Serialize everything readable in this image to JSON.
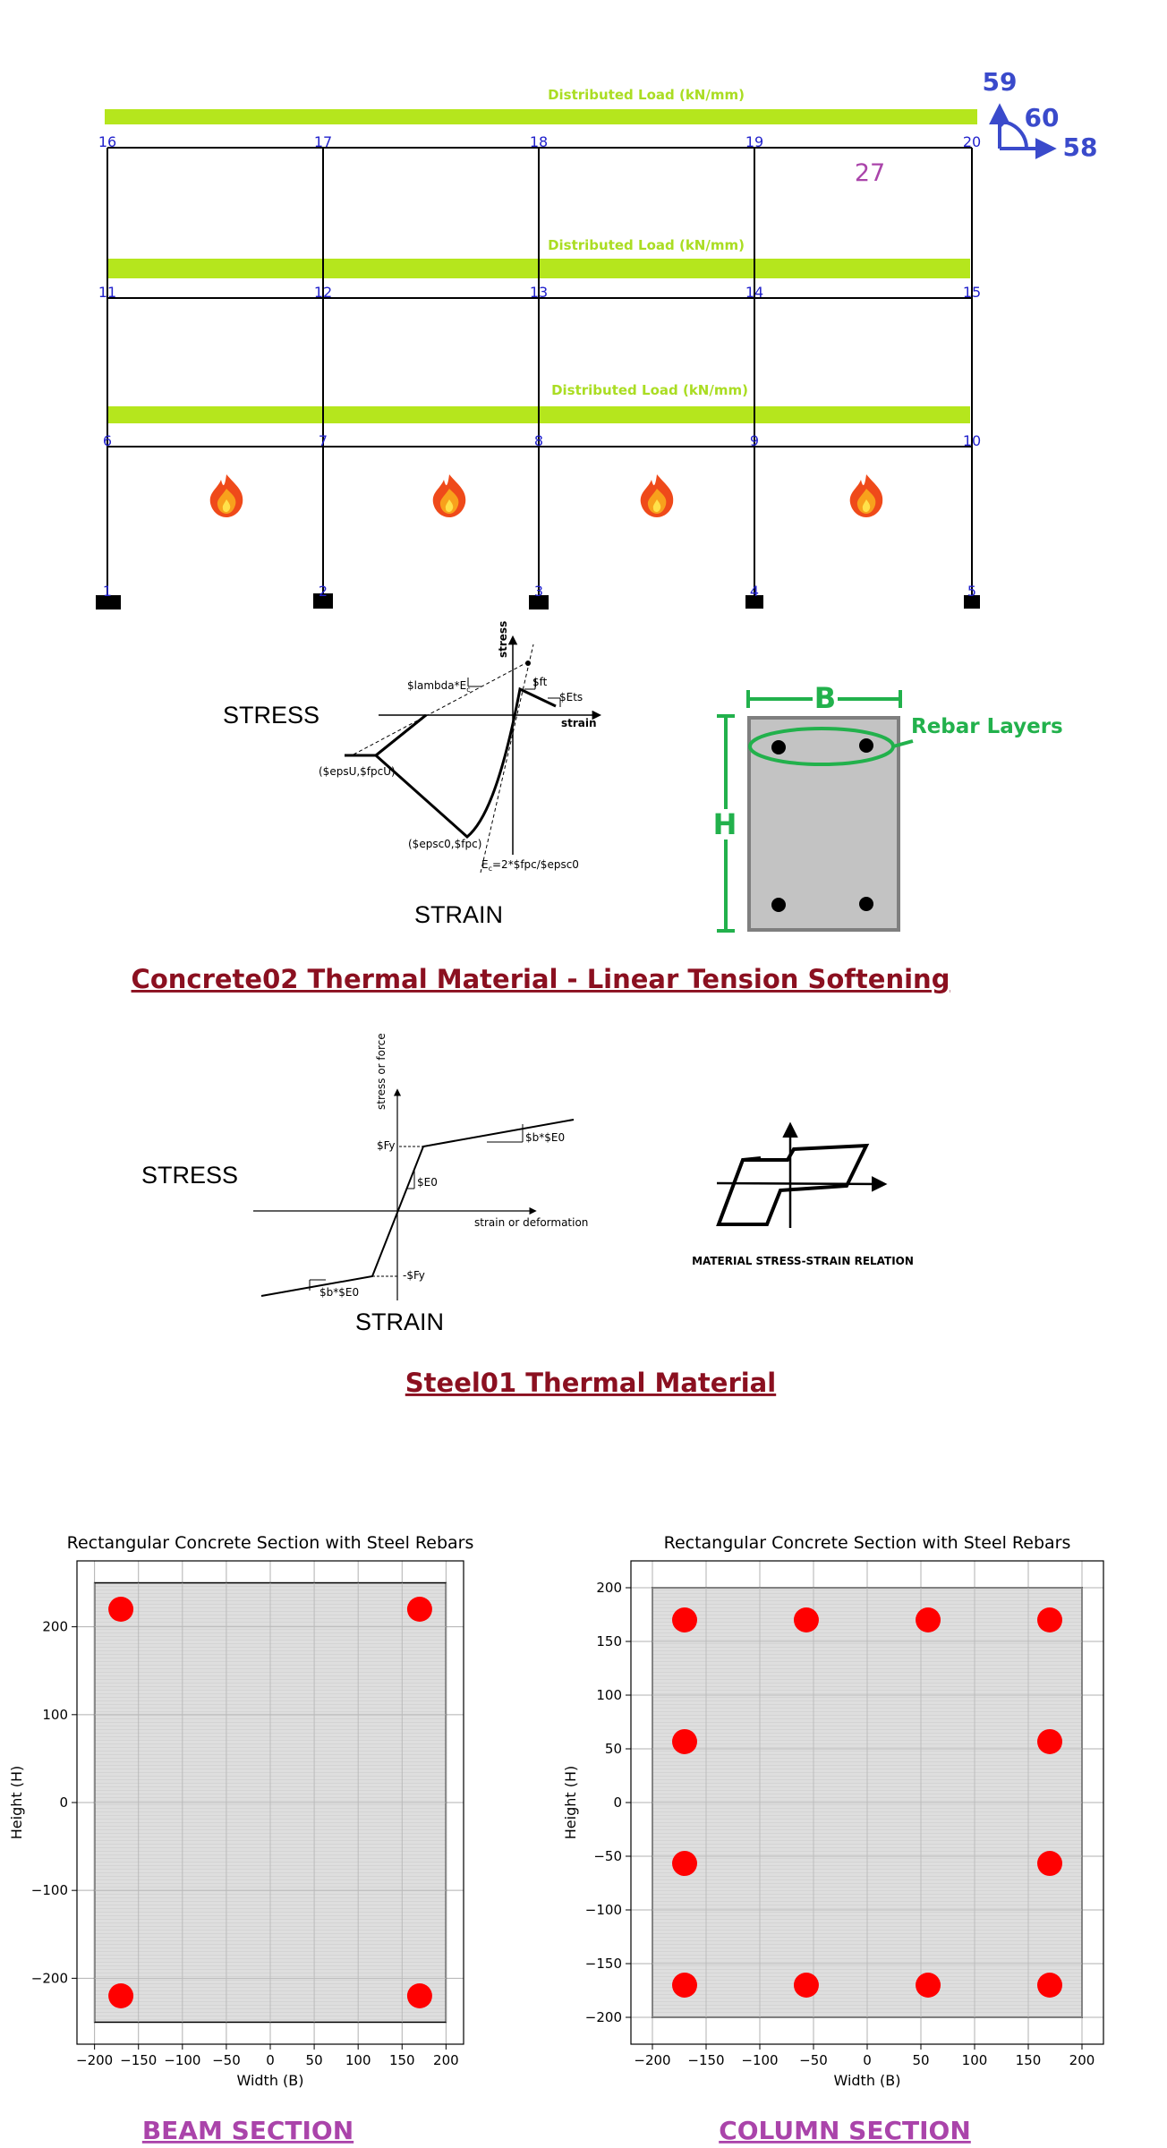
{
  "frame": {
    "load_label": "Distributed Load (kN/mm)",
    "nodes": [
      {
        "id": "1",
        "col": 0,
        "lvl": 0
      },
      {
        "id": "2",
        "col": 1,
        "lvl": 0
      },
      {
        "id": "3",
        "col": 2,
        "lvl": 0
      },
      {
        "id": "4",
        "col": 3,
        "lvl": 0
      },
      {
        "id": "5",
        "col": 4,
        "lvl": 0
      },
      {
        "id": "6",
        "col": 0,
        "lvl": 1
      },
      {
        "id": "7",
        "col": 1,
        "lvl": 1
      },
      {
        "id": "8",
        "col": 2,
        "lvl": 1
      },
      {
        "id": "9",
        "col": 3,
        "lvl": 1
      },
      {
        "id": "10",
        "col": 4,
        "lvl": 1
      },
      {
        "id": "11",
        "col": 0,
        "lvl": 2
      },
      {
        "id": "12",
        "col": 1,
        "lvl": 2
      },
      {
        "id": "13",
        "col": 2,
        "lvl": 2
      },
      {
        "id": "14",
        "col": 3,
        "lvl": 2
      },
      {
        "id": "15",
        "col": 4,
        "lvl": 2
      },
      {
        "id": "16",
        "col": 0,
        "lvl": 3
      },
      {
        "id": "17",
        "col": 1,
        "lvl": 3
      },
      {
        "id": "18",
        "col": 2,
        "lvl": 3
      },
      {
        "id": "19",
        "col": 3,
        "lvl": 3
      },
      {
        "id": "20",
        "col": 4,
        "lvl": 3
      }
    ],
    "element_label": "27",
    "axes": {
      "y": "59",
      "rot": "60",
      "x": "58"
    }
  },
  "concrete": {
    "stress_label": "STRESS",
    "strain_label": "STRAIN",
    "axis_stress": "stress",
    "axis_strain": "strain",
    "labels": {
      "lambda": "$lambda*E",
      "lambda_sub": "c",
      "ft": "$ft",
      "ets": "$Ets",
      "epsu": "($epsU,$fpcU)",
      "epsc0": "($epsc0,$fpc)",
      "ec_pre": "E",
      "ec_sub": "c",
      "ec_post": "=2*$fpc/$epsc0"
    },
    "section": {
      "B": "B",
      "H": "H",
      "rebar": "Rebar Layers"
    },
    "title": "Concrete02 Thermal Material - Linear Tension Softening"
  },
  "steel": {
    "stress_label": "STRESS",
    "strain_label": "STRAIN",
    "axis_y": "stress or force",
    "axis_x": "strain or deformation",
    "labels": {
      "fy": "$Fy",
      "fy_neg": "-$Fy",
      "e0": "$E0",
      "b_e0": "$b*$E0"
    },
    "relation_caption": "MATERIAL STRESS-STRAIN RELATION",
    "title": "Steel01 Thermal Material"
  },
  "chart_data": [
    {
      "type": "scatter",
      "title": "Rectangular Concrete Section with Steel Rebars",
      "xlabel": "Width (B)",
      "ylabel": "Height (H)",
      "xlim": [
        -220,
        220
      ],
      "ylim": [
        -275,
        275
      ],
      "xticks": [
        -200,
        -150,
        -100,
        -50,
        0,
        50,
        100,
        150,
        200
      ],
      "yticks": [
        -200,
        -100,
        0,
        100,
        200
      ],
      "grid": true,
      "section_rect": {
        "x": [
          -200,
          200
        ],
        "y": [
          -250,
          250
        ]
      },
      "rebars_x": [
        -170,
        170,
        -170,
        170
      ],
      "rebars_y": [
        220,
        220,
        -220,
        -220
      ],
      "caption": "BEAM SECTION"
    },
    {
      "type": "scatter",
      "title": "Rectangular Concrete Section with Steel Rebars",
      "xlabel": "Width (B)",
      "ylabel": "Height (H)",
      "xlim": [
        -220,
        220
      ],
      "ylim": [
        -225,
        225
      ],
      "xticks": [
        -200,
        -150,
        -100,
        -50,
        0,
        50,
        100,
        150,
        200
      ],
      "yticks": [
        -200,
        -150,
        -100,
        -50,
        0,
        50,
        100,
        150,
        200
      ],
      "grid": true,
      "section_rect": {
        "x": [
          -200,
          200
        ],
        "y": [
          -200,
          200
        ]
      },
      "rebars_x": [
        -170,
        -56.7,
        56.7,
        170,
        -170,
        170,
        -170,
        170,
        -170,
        -56.7,
        56.7,
        170
      ],
      "rebars_y": [
        170,
        170,
        170,
        170,
        56.7,
        56.7,
        -56.7,
        -56.7,
        -170,
        -170,
        -170,
        -170
      ],
      "caption": "COLUMN SECTION"
    }
  ]
}
